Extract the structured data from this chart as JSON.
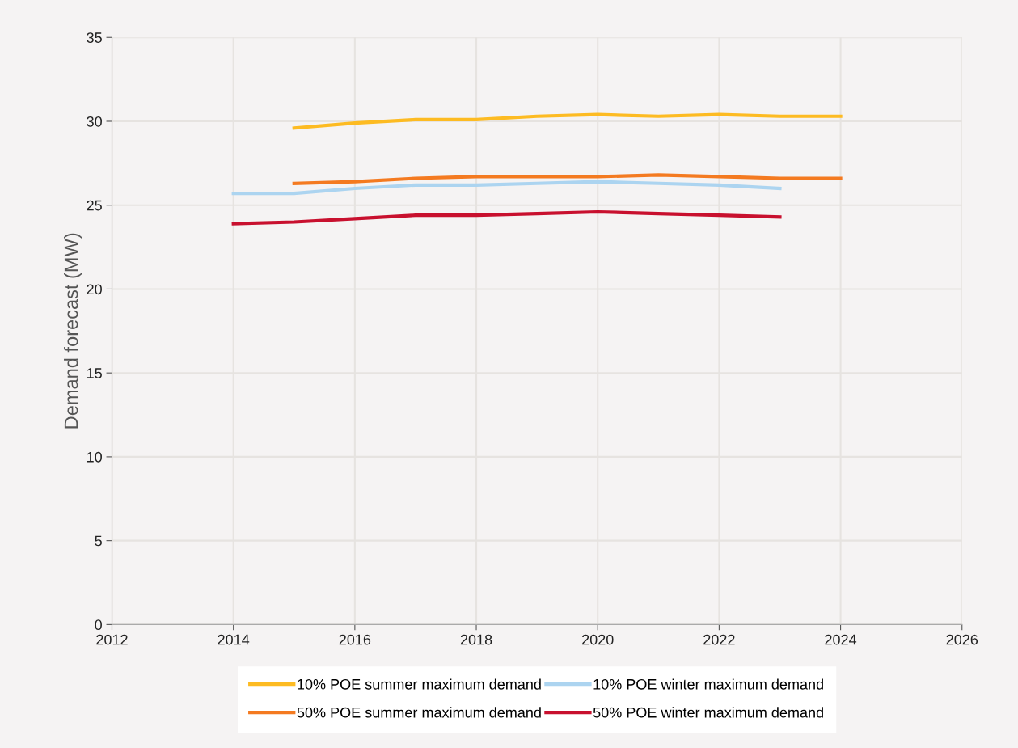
{
  "chart_data": {
    "type": "line",
    "ylabel": "Demand forecast (MW)",
    "xlim": [
      2012,
      2026
    ],
    "xticks": [
      2012,
      2014,
      2016,
      2018,
      2020,
      2022,
      2024,
      2026
    ],
    "ylim": [
      0,
      35
    ],
    "yticks": [
      0,
      5,
      10,
      15,
      20,
      25,
      30,
      35
    ],
    "grid": true,
    "legend": "bottom",
    "marker": "none",
    "line_style": "solid",
    "series": [
      {
        "name": "10% POE summer maximum demand",
        "color": "#fdbb22",
        "x": [
          2015,
          2016,
          2017,
          2018,
          2019,
          2020,
          2021,
          2022,
          2023,
          2024
        ],
        "values": [
          29.6,
          29.9,
          30.1,
          30.1,
          30.3,
          30.4,
          30.3,
          30.4,
          30.3,
          30.3
        ]
      },
      {
        "name": "50% POE summer maximum demand",
        "color": "#f47a20",
        "x": [
          2015,
          2016,
          2017,
          2018,
          2019,
          2020,
          2021,
          2022,
          2023,
          2024
        ],
        "values": [
          26.3,
          26.4,
          26.6,
          26.7,
          26.7,
          26.7,
          26.8,
          26.7,
          26.6,
          26.6
        ]
      },
      {
        "name": "10% POE winter maximum demand",
        "color": "#acd4f0",
        "x": [
          2014,
          2015,
          2016,
          2017,
          2018,
          2019,
          2020,
          2021,
          2022,
          2023
        ],
        "values": [
          25.7,
          25.7,
          26.0,
          26.2,
          26.2,
          26.3,
          26.4,
          26.3,
          26.2,
          26.0
        ]
      },
      {
        "name": "50% POE winter maximum demand",
        "color": "#c8102e",
        "x": [
          2014,
          2015,
          2016,
          2017,
          2018,
          2019,
          2020,
          2021,
          2022,
          2023
        ],
        "values": [
          23.9,
          24.0,
          24.2,
          24.4,
          24.4,
          24.5,
          24.6,
          24.5,
          24.4,
          24.3
        ]
      }
    ]
  }
}
